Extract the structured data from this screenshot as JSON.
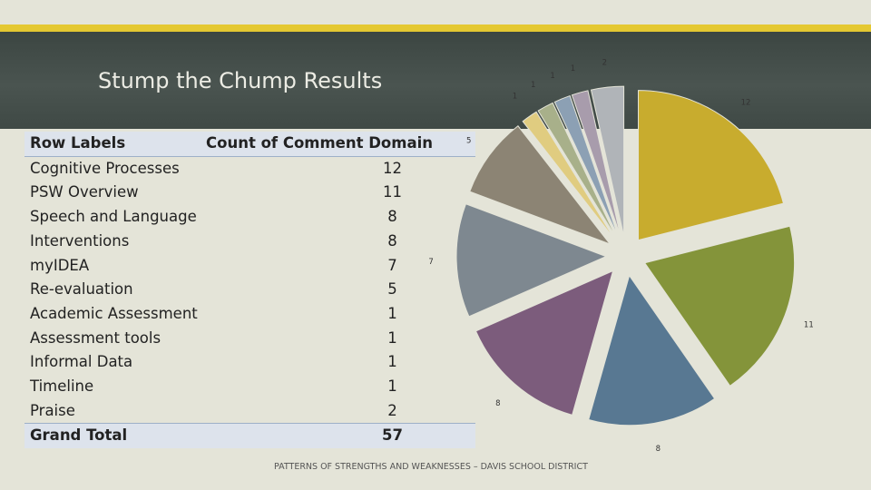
{
  "slide": {
    "title": "Stump the Chump Results",
    "footer": "PATTERNS OF STRENGTHS AND WEAKNESSES – DAVIS SCHOOL DISTRICT"
  },
  "table": {
    "header": [
      "Row Labels",
      "Count of Comment Domain"
    ],
    "rows": [
      {
        "label": "Cognitive Processes",
        "value": "12"
      },
      {
        "label": "PSW Overview",
        "value": "11"
      },
      {
        "label": "Speech and Language",
        "value": "8"
      },
      {
        "label": "Interventions",
        "value": "8"
      },
      {
        "label": "myIDEA",
        "value": "7"
      },
      {
        "label": "Re-evaluation",
        "value": "5"
      },
      {
        "label": "Academic Assessment",
        "value": "1"
      },
      {
        "label": "Assessment tools",
        "value": "1"
      },
      {
        "label": "Informal Data",
        "value": "1"
      },
      {
        "label": "Timeline",
        "value": "1"
      },
      {
        "label": "Praise",
        "value": "2"
      }
    ],
    "total": {
      "label": "Grand Total",
      "value": "57"
    }
  },
  "chart_data": {
    "type": "pie",
    "title": "",
    "categories": [
      "Cognitive Processes",
      "PSW Overview",
      "Speech and Language",
      "Interventions",
      "myIDEA",
      "Re-evaluation",
      "Academic Assessment",
      "Assessment tools",
      "Informal Data",
      "Timeline",
      "Praise"
    ],
    "values": [
      12,
      11,
      8,
      8,
      7,
      5,
      1,
      1,
      1,
      1,
      2
    ],
    "colors": [
      "#c8ac2e",
      "#84943a",
      "#587892",
      "#7c5c7c",
      "#7e8890",
      "#8c8474",
      "#e0cc80",
      "#a8b08a",
      "#8ca0b4",
      "#a89cac",
      "#b0b4b8"
    ],
    "data_labels": true,
    "legend": "none",
    "exploded": true
  }
}
